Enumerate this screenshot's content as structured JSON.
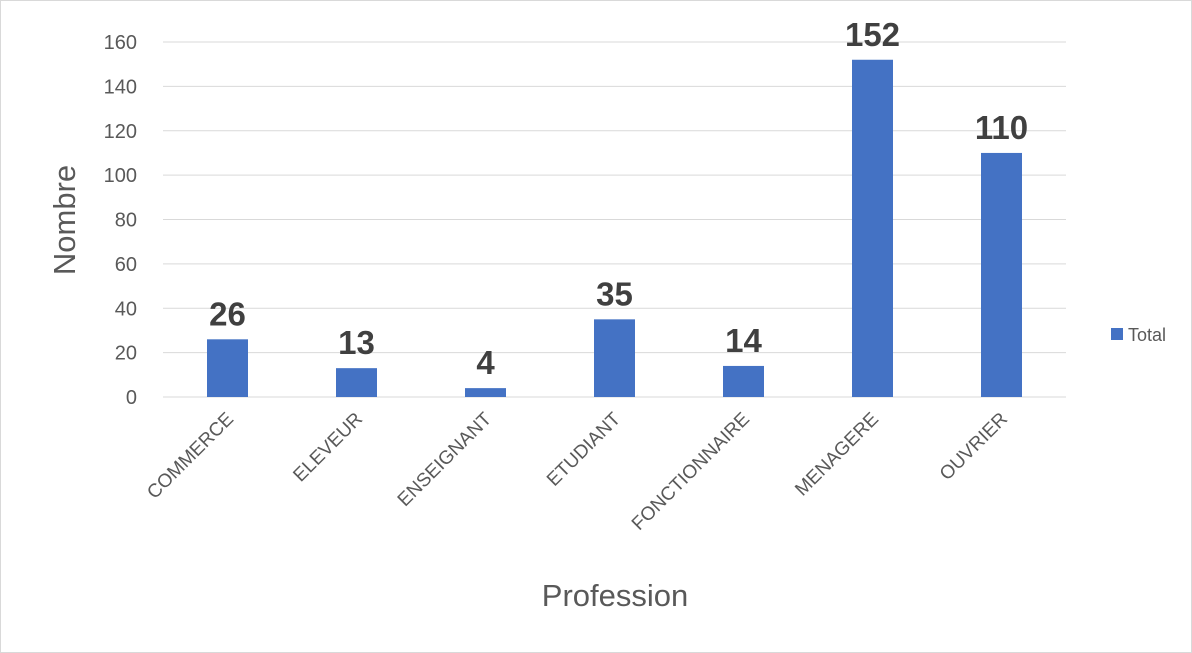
{
  "chart_data": {
    "type": "bar",
    "categories": [
      "COMMERCE",
      "ELEVEUR",
      "ENSEIGNANT",
      "ETUDIANT",
      "FONCTIONNAIRE",
      "MENAGERE",
      "OUVRIER"
    ],
    "series": [
      {
        "name": "Total",
        "values": [
          26,
          13,
          4,
          35,
          14,
          152,
          110
        ]
      }
    ],
    "xlabel": "Profession",
    "ylabel": "Nombre",
    "ylim": [
      0,
      160
    ],
    "yticks": [
      0,
      20,
      40,
      60,
      80,
      100,
      120,
      140,
      160
    ],
    "grid": true,
    "legend_position": "right",
    "bar_color": "#4472c4",
    "data_labels": true
  }
}
